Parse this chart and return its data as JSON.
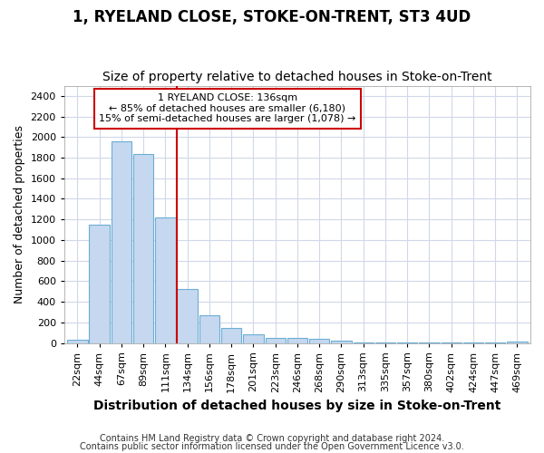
{
  "title": "1, RYELAND CLOSE, STOKE-ON-TRENT, ST3 4UD",
  "subtitle": "Size of property relative to detached houses in Stoke-on-Trent",
  "xlabel": "Distribution of detached houses by size in Stoke-on-Trent",
  "ylabel": "Number of detached properties",
  "footer_line1": "Contains HM Land Registry data © Crown copyright and database right 2024.",
  "footer_line2": "Contains public sector information licensed under the Open Government Licence v3.0.",
  "categories": [
    "22sqm",
    "44sqm",
    "67sqm",
    "89sqm",
    "111sqm",
    "134sqm",
    "156sqm",
    "178sqm",
    "201sqm",
    "223sqm",
    "246sqm",
    "268sqm",
    "290sqm",
    "313sqm",
    "335sqm",
    "357sqm",
    "380sqm",
    "402sqm",
    "424sqm",
    "447sqm",
    "469sqm"
  ],
  "values": [
    30,
    1150,
    1960,
    1840,
    1220,
    520,
    265,
    145,
    80,
    50,
    45,
    40,
    22,
    8,
    8,
    5,
    5,
    4,
    3,
    3,
    15
  ],
  "bar_color": "#c5d8ef",
  "bar_edge_color": "#6baed6",
  "vline_x": 4.5,
  "vline_color": "#cc0000",
  "annotation_text": "1 RYELAND CLOSE: 136sqm\n← 85% of detached houses are smaller (6,180)\n15% of semi-detached houses are larger (1,078) →",
  "annotation_box_color": "#ffffff",
  "annotation_box_edge_color": "#cc0000",
  "ylim": [
    0,
    2500
  ],
  "yticks": [
    0,
    200,
    400,
    600,
    800,
    1000,
    1200,
    1400,
    1600,
    1800,
    2000,
    2200,
    2400
  ],
  "bg_color": "#ffffff",
  "plot_bg_color": "#ffffff",
  "grid_color": "#d0d8e8",
  "title_fontsize": 12,
  "subtitle_fontsize": 10,
  "xlabel_fontsize": 10,
  "ylabel_fontsize": 9,
  "tick_fontsize": 8,
  "footer_fontsize": 7
}
